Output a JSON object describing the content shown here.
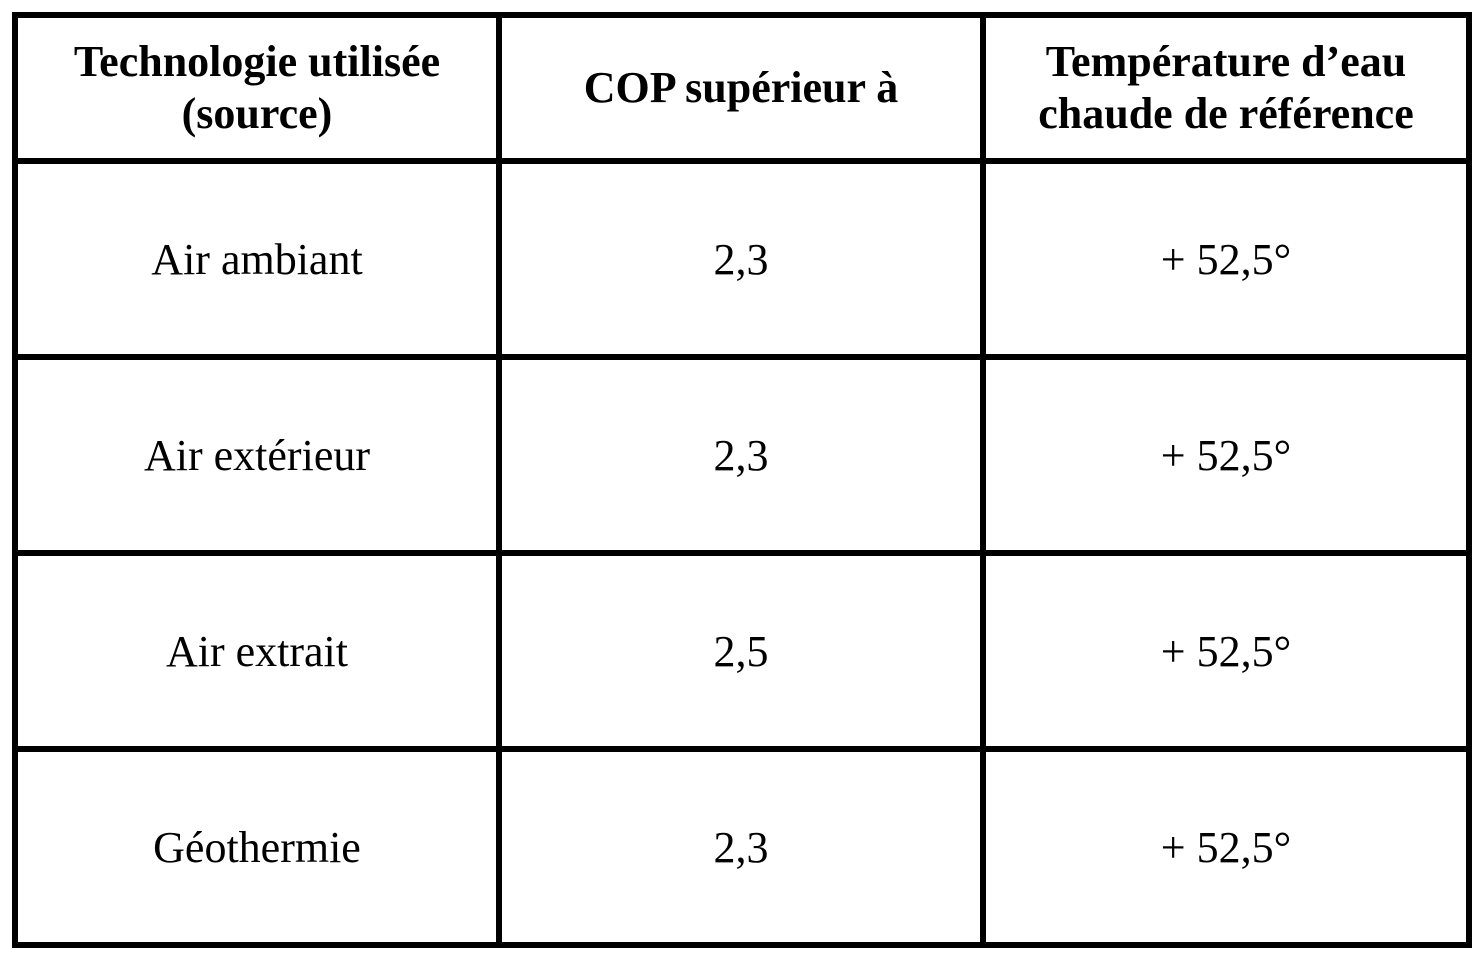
{
  "table": {
    "headers": [
      {
        "line1": "Technologie utilisée",
        "line2": "(source)"
      },
      {
        "line1": "COP supérieur à",
        "line2": ""
      },
      {
        "line1": "Température d’eau",
        "line2": "chaude de référence"
      }
    ],
    "rows": [
      [
        "Air ambiant",
        "2,3",
        "+ 52,5°"
      ],
      [
        "Air extérieur",
        "2,3",
        "+ 52,5°"
      ],
      [
        "Air extrait",
        "2,5",
        "+ 52,5°"
      ],
      [
        "Géothermie",
        "2,3",
        "+ 52,5°"
      ]
    ]
  }
}
